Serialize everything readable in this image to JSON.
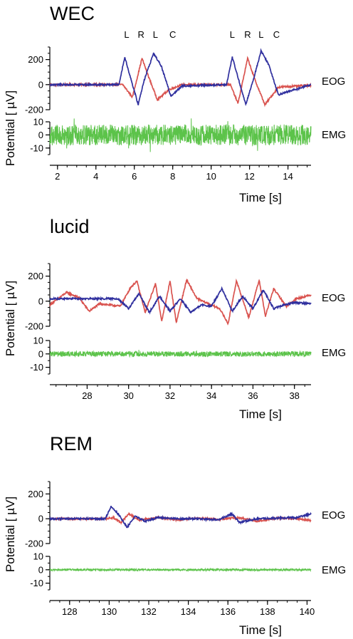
{
  "ylabel": "Potential [  µV]",
  "colors": {
    "eog_red": "#d9534f",
    "eog_blue": "#2f2f9e",
    "emg_green": "#5cc34a",
    "axis": "#000000"
  },
  "chart_data": [
    {
      "type": "line",
      "title": "WEC",
      "xlabel": "Time  [s]",
      "xlim": [
        1.6,
        15.2
      ],
      "xticks": [
        "2",
        "4",
        "6",
        "8",
        "10",
        "12",
        "14"
      ],
      "eog": {
        "ylim": [
          -200,
          300
        ],
        "yticks": [
          "200",
          "0",
          "-200"
        ],
        "label": "EOG",
        "series": [
          {
            "color": "red",
            "x": [
              1.6,
              5.4,
              5.9,
              6.4,
              6.8,
              7.2,
              7.8,
              8.5,
              11.0,
              11.4,
              11.9,
              12.3,
              12.8,
              13.5,
              15.2
            ],
            "y": [
              0,
              0,
              -100,
              210,
              40,
              -120,
              -40,
              0,
              0,
              -150,
              210,
              30,
              -160,
              -20,
              -5
            ]
          },
          {
            "color": "blue",
            "x": [
              1.6,
              5.2,
              5.5,
              6.2,
              6.5,
              7.0,
              7.4,
              7.9,
              8.5,
              10.8,
              11.1,
              11.8,
              12.2,
              12.6,
              13.0,
              13.5,
              15.2
            ],
            "y": [
              0,
              0,
              220,
              -160,
              30,
              250,
              150,
              -90,
              -10,
              0,
              220,
              -160,
              40,
              270,
              160,
              -80,
              0
            ]
          }
        ],
        "annotations": [
          {
            "text": "L",
            "x": 5.6
          },
          {
            "text": "R",
            "x": 6.35
          },
          {
            "text": "L",
            "x": 7.1
          },
          {
            "text": "C",
            "x": 8.0
          },
          {
            "text": "L",
            "x": 11.1
          },
          {
            "text": "R",
            "x": 11.9
          },
          {
            "text": "L",
            "x": 12.6
          },
          {
            "text": "C",
            "x": 13.4
          }
        ]
      },
      "emg": {
        "ylim": [
          -15,
          10
        ],
        "yticks": [
          "10",
          "0",
          "-10"
        ],
        "label": "EMG",
        "amplitude": 8
      }
    },
    {
      "type": "line",
      "title": "lucid",
      "xlabel": "Time  [s]",
      "xlim": [
        26.2,
        38.8
      ],
      "xticks": [
        "28",
        "30",
        "32",
        "34",
        "36",
        "38"
      ],
      "eog": {
        "ylim": [
          -200,
          300
        ],
        "yticks": [
          "200",
          "0",
          "-200"
        ],
        "label": "EOG",
        "series": [
          {
            "color": "red",
            "x": [
              26.2,
              27.0,
              27.6,
              28.1,
              28.6,
              29.6,
              30.1,
              30.4,
              30.8,
              31.3,
              31.6,
              32.0,
              32.3,
              32.8,
              33.3,
              34.4,
              34.8,
              35.2,
              35.8,
              36.3,
              36.6,
              37.0,
              37.6,
              38.1,
              38.8
            ],
            "y": [
              -30,
              70,
              30,
              -80,
              -20,
              -40,
              110,
              160,
              -90,
              140,
              -160,
              160,
              -170,
              170,
              20,
              -60,
              -180,
              160,
              -130,
              170,
              -120,
              100,
              -40,
              20,
              50
            ]
          },
          {
            "color": "blue",
            "x": [
              26.2,
              29.5,
              30.0,
              30.5,
              31.0,
              31.5,
              32.0,
              32.5,
              33.0,
              33.5,
              34.0,
              34.5,
              35.0,
              35.5,
              36.0,
              36.5,
              37.0,
              37.5,
              38.0,
              38.8
            ],
            "y": [
              20,
              20,
              -60,
              60,
              -90,
              40,
              -80,
              20,
              -90,
              -30,
              -40,
              100,
              -80,
              40,
              -60,
              90,
              -60,
              -30,
              -10,
              -20
            ]
          }
        ]
      },
      "emg": {
        "ylim": [
          -15,
          10
        ],
        "yticks": [
          "10",
          "0",
          "-10"
        ],
        "label": "EMG",
        "amplitude": 2
      }
    },
    {
      "type": "line",
      "title": "REM",
      "xlabel": "Time  [s]",
      "xlim": [
        127.0,
        140.2
      ],
      "xticks": [
        "128",
        "130",
        "132",
        "134",
        "136",
        "138",
        "140"
      ],
      "eog": {
        "ylim": [
          -200,
          300
        ],
        "yticks": [
          "200",
          "0",
          "-200"
        ],
        "label": "EOG",
        "series": [
          {
            "color": "red",
            "x": [
              127.0,
              129.8,
              130.2,
              130.6,
              131.0,
              131.5,
              132.5,
              133.5,
              134.5,
              135.5,
              136.5,
              137.5,
              138.5,
              139.5,
              140.2
            ],
            "y": [
              0,
              0,
              10,
              -30,
              40,
              -10,
              10,
              -10,
              5,
              -5,
              10,
              -20,
              5,
              0,
              -15
            ]
          },
          {
            "color": "blue",
            "x": [
              127.0,
              129.8,
              130.1,
              130.5,
              130.9,
              131.3,
              131.8,
              132.5,
              133.5,
              134.5,
              135.5,
              136.2,
              136.6,
              137.5,
              138.5,
              139.5,
              140.2
            ],
            "y": [
              0,
              0,
              100,
              30,
              -70,
              20,
              -20,
              10,
              0,
              0,
              -10,
              40,
              -30,
              0,
              5,
              10,
              40
            ]
          }
        ]
      },
      "emg": {
        "ylim": [
          -15,
          10
        ],
        "yticks": [
          "10",
          "0",
          "-10"
        ],
        "label": "EMG",
        "amplitude": 0.8
      }
    }
  ]
}
